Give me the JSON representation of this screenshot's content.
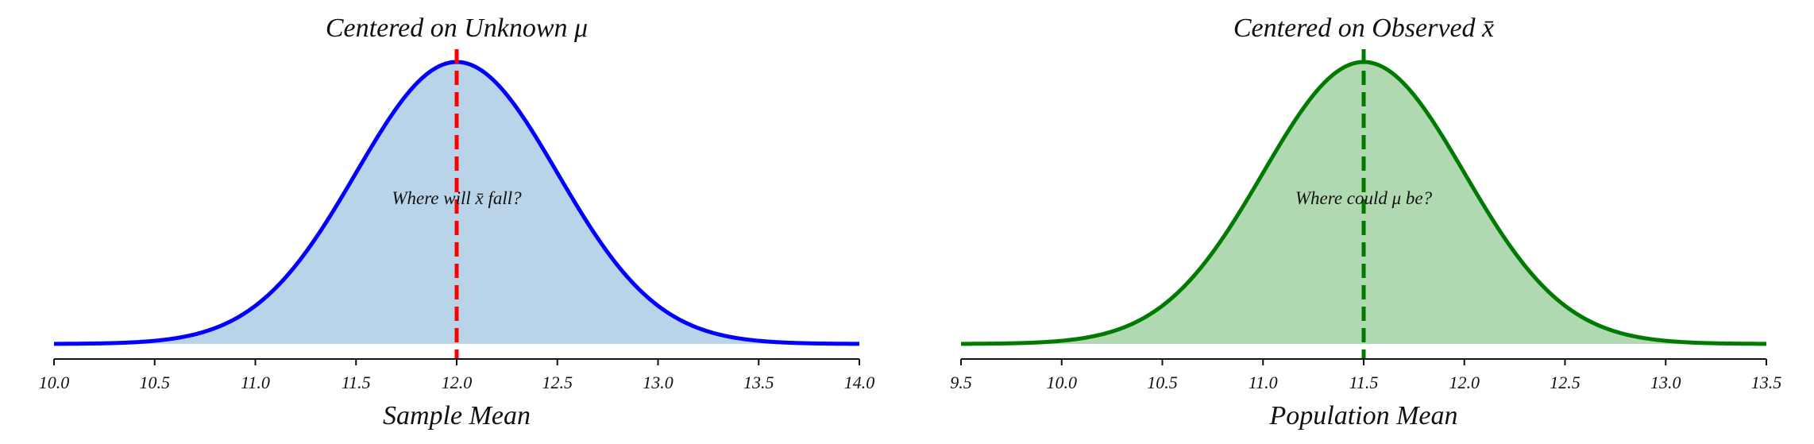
{
  "chart_data": [
    {
      "type": "area",
      "title": "Centered on Unknown μ",
      "xlabel": "Sample Mean",
      "ylabel": "",
      "xlim": [
        10.0,
        14.0
      ],
      "xticks": [
        "10.0",
        "10.5",
        "11.0",
        "11.5",
        "12.0",
        "12.5",
        "13.0",
        "13.5",
        "14.0"
      ],
      "curve": {
        "distribution": "normal",
        "mean": 12.0,
        "sd": 0.5
      },
      "reference_line": {
        "x": 12.0,
        "style": "dashed",
        "color": "#ff0000"
      },
      "annotation": "Where will x̄ fall?",
      "line_color": "#0000ff",
      "fill_color": "#b9d4e9",
      "grid": false
    },
    {
      "type": "area",
      "title": "Centered on Observed x̄",
      "xlabel": "Population Mean",
      "ylabel": "",
      "xlim": [
        9.5,
        13.5
      ],
      "xticks": [
        "9.5",
        "10.0",
        "10.5",
        "11.0",
        "11.5",
        "12.0",
        "12.5",
        "13.0",
        "13.5"
      ],
      "curve": {
        "distribution": "normal",
        "mean": 11.5,
        "sd": 0.5
      },
      "reference_line": {
        "x": 11.5,
        "style": "dashed",
        "color": "#007a00"
      },
      "annotation": "Where could μ be?",
      "line_color": "#007a00",
      "fill_color": "#b1d9b1",
      "grid": false
    }
  ]
}
